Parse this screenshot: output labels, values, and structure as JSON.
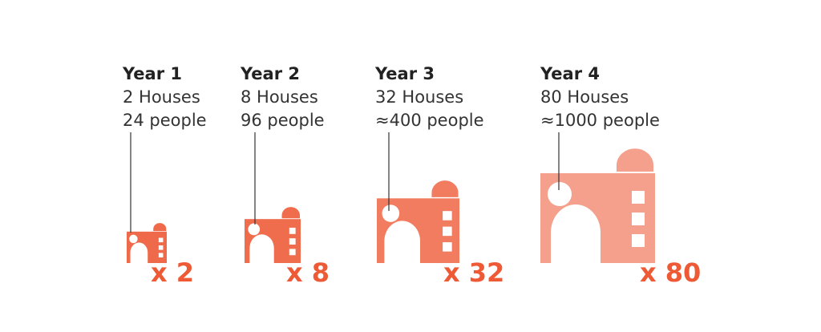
{
  "stages": [
    {
      "year": "Year 1",
      "houses": "2 Houses",
      "people": "24 people",
      "multiplier": "x 2",
      "color": "#ef6a4a"
    },
    {
      "year": "Year 2",
      "houses": "8 Houses",
      "people": "96 people",
      "multiplier": "x 8",
      "color": "#ef6d4d"
    },
    {
      "year": "Year 3",
      "houses": "32 Houses",
      "people": "≈400 people",
      "multiplier": "x 32",
      "color": "#f27c5f"
    },
    {
      "year": "Year 4",
      "houses": "80 Houses",
      "people": "≈1000 people",
      "multiplier": "x 80",
      "color": "#f5a08c"
    }
  ],
  "multiplier_color": "#ee5a36",
  "building_icon": "house-icon"
}
